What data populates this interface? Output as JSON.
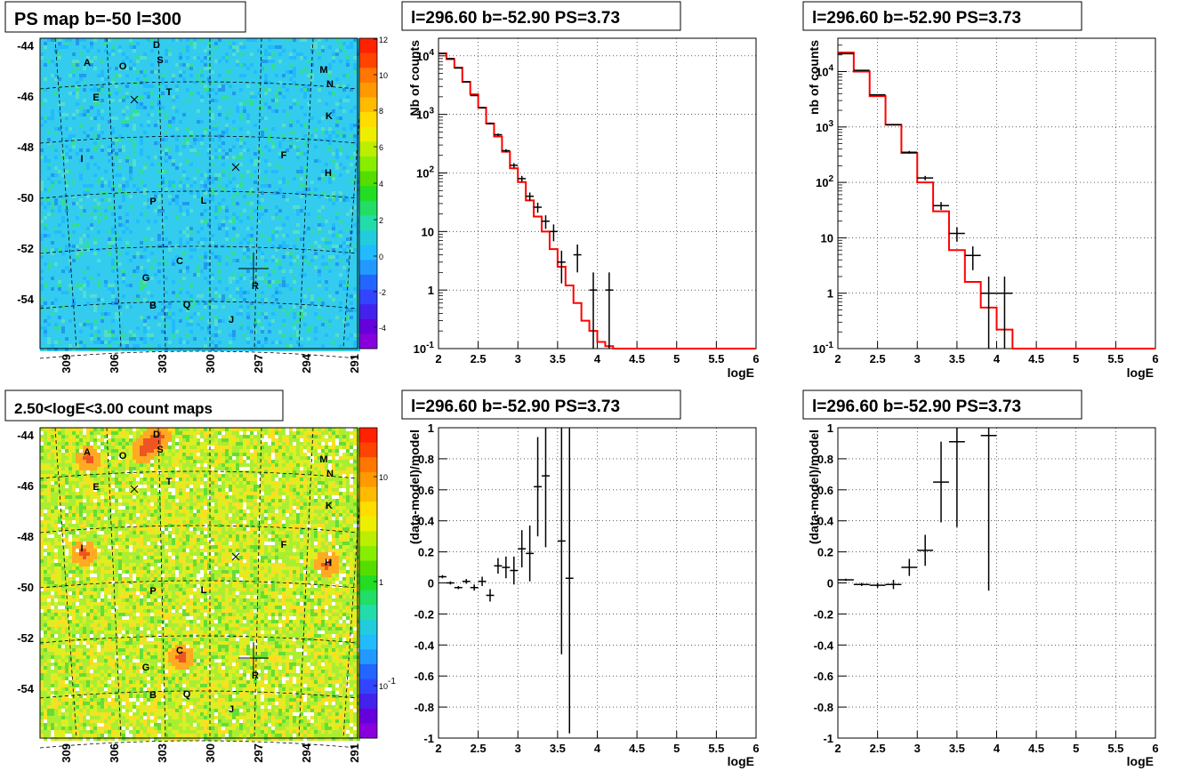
{
  "palette": {
    "data": "#000000",
    "model": "#ff0000",
    "grid": "#000000"
  },
  "chart_data": [
    {
      "type": "heatmap",
      "title": "PS map b=-50 l=300",
      "xticks": [
        "309",
        "306",
        "303",
        "300",
        "297",
        "294",
        "291"
      ],
      "yticks": [
        "-44",
        "-46",
        "-48",
        "-50",
        "-52",
        "-54"
      ],
      "colorbar_ticks": [
        "12",
        "10",
        "8",
        "6",
        "4",
        "2",
        "0",
        "-2",
        "-4"
      ],
      "sources": [
        "A",
        "O",
        "D",
        "S",
        "E",
        "T",
        "M",
        "N",
        "K",
        "I",
        "F",
        "H",
        "P",
        "L",
        "C",
        "G",
        "R",
        "B",
        "Q",
        "J"
      ],
      "grid": true
    },
    {
      "type": "line",
      "title": "l=296.60 b=-52.90 PS=3.73",
      "xlabel": "logE",
      "ylabel": "Nb of counts",
      "yscale": "log",
      "xlim": [
        2,
        6
      ],
      "ylim": [
        0.1,
        20000
      ],
      "xticks": [
        "2",
        "2.5",
        "3",
        "3.5",
        "4",
        "4.5",
        "5",
        "5.5",
        "6"
      ],
      "yticks": [
        "10^4",
        "10^3",
        "10^2",
        "10",
        "1",
        "10^-1"
      ],
      "grid": true,
      "data_points": {
        "x": [
          2.05,
          2.15,
          2.25,
          2.35,
          2.45,
          2.55,
          2.65,
          2.75,
          2.85,
          2.95,
          3.05,
          3.15,
          3.25,
          3.35,
          3.45,
          3.55,
          3.65,
          3.75,
          3.85,
          3.95,
          4.05,
          4.15
        ],
        "y": [
          11000,
          9000,
          6200,
          3600,
          2100,
          1300,
          700,
          450,
          240,
          135,
          80,
          40,
          26,
          15,
          10,
          3,
          0.1,
          4,
          0.1,
          1,
          0.1,
          1
        ],
        "err": [
          105,
          95,
          79,
          60,
          46,
          36,
          26,
          21,
          15,
          12,
          9,
          6.3,
          5.1,
          3.9,
          3.2,
          1.7,
          0,
          2,
          0,
          1,
          0,
          1
        ]
      },
      "model_step": {
        "edges": [
          2.0,
          2.1,
          2.2,
          2.3,
          2.4,
          2.5,
          2.6,
          2.7,
          2.8,
          2.9,
          3.0,
          3.1,
          3.2,
          3.3,
          3.4,
          3.5,
          3.6,
          3.7,
          3.8,
          3.9,
          4.0,
          4.1,
          4.2,
          6.0
        ],
        "values": [
          11000,
          8800,
          6300,
          3600,
          2200,
          1300,
          700,
          420,
          230,
          120,
          70,
          34,
          18,
          10,
          5,
          2.5,
          1.2,
          0.6,
          0.3,
          0.2,
          0.13,
          0.11,
          0.1
        ]
      }
    },
    {
      "type": "line",
      "title": "l=296.60 b=-52.90 PS=3.73",
      "xlabel": "logE",
      "ylabel": "nb of counts",
      "yscale": "log",
      "xlim": [
        2,
        6
      ],
      "ylim": [
        0.1,
        40000
      ],
      "xticks": [
        "2",
        "2.5",
        "3",
        "3.5",
        "4",
        "4.5",
        "5",
        "5.5",
        "6"
      ],
      "yticks": [
        "10^4",
        "10^3",
        "10^2",
        "10",
        "1",
        "10^-1"
      ],
      "grid": true,
      "data_points": {
        "x": [
          2.1,
          2.3,
          2.5,
          2.7,
          2.9,
          3.1,
          3.3,
          3.5,
          3.7,
          3.9,
          4.1
        ],
        "y": [
          21000,
          10500,
          3800,
          1100,
          350,
          120,
          38,
          12,
          4.8,
          1,
          1
        ],
        "err": [
          145,
          102,
          62,
          33,
          19,
          11,
          6.2,
          3.5,
          2.2,
          1,
          1
        ]
      },
      "model_step": {
        "edges": [
          2.0,
          2.2,
          2.4,
          2.6,
          2.8,
          3.0,
          3.2,
          3.4,
          3.6,
          3.8,
          4.0,
          4.2,
          6.0
        ],
        "values": [
          22000,
          10000,
          3600,
          1100,
          340,
          100,
          30,
          6,
          1.6,
          0.55,
          0.22,
          0.1
        ]
      }
    },
    {
      "type": "heatmap",
      "title": "2.50<logE<3.00 count maps",
      "xticks": [
        "309",
        "306",
        "303",
        "300",
        "297",
        "294",
        "291"
      ],
      "yticks": [
        "-44",
        "-46",
        "-48",
        "-50",
        "-52",
        "-54"
      ],
      "colorbar_ticks": [
        "10",
        "1",
        "10^-1"
      ],
      "sources": [
        "A",
        "O",
        "D",
        "S",
        "E",
        "T",
        "M",
        "N",
        "K",
        "I",
        "F",
        "H",
        "P",
        "L",
        "C",
        "G",
        "R",
        "B",
        "Q",
        "J"
      ],
      "grid": true
    },
    {
      "type": "scatter",
      "title": "l=296.60 b=-52.90 PS=3.73",
      "xlabel": "logE",
      "ylabel": "(data-model)/model",
      "xlim": [
        2,
        6
      ],
      "ylim": [
        -1,
        1
      ],
      "xticks": [
        "2",
        "2.5",
        "3",
        "3.5",
        "4",
        "4.5",
        "5",
        "5.5",
        "6"
      ],
      "yticks": [
        "1",
        "0.8",
        "0.6",
        "0.4",
        "0.2",
        "0",
        "-0.2",
        "-0.4",
        "-0.6",
        "-0.8",
        "-1"
      ],
      "grid": true,
      "points": {
        "x": [
          2.05,
          2.15,
          2.25,
          2.35,
          2.45,
          2.55,
          2.65,
          2.75,
          2.85,
          2.95,
          3.05,
          3.15,
          3.25,
          3.35,
          3.55,
          3.65
        ],
        "y": [
          0.04,
          0.0,
          -0.03,
          0.01,
          -0.03,
          0.01,
          -0.08,
          0.11,
          0.1,
          0.08,
          0.22,
          0.19,
          0.62,
          0.69,
          0.27,
          0.03
        ],
        "err": [
          0.01,
          0.01,
          0.01,
          0.015,
          0.02,
          0.03,
          0.04,
          0.05,
          0.07,
          0.09,
          0.12,
          0.18,
          0.32,
          0.46,
          0.73,
          1.0
        ]
      }
    },
    {
      "type": "scatter",
      "title": "l=296.60 b=-52.90 PS=3.73",
      "xlabel": "logE",
      "ylabel": "(data-model)/model",
      "xlim": [
        2,
        6
      ],
      "ylim": [
        -1,
        1
      ],
      "xticks": [
        "2",
        "2.5",
        "3",
        "3.5",
        "4",
        "4.5",
        "5",
        "5.5",
        "6"
      ],
      "yticks": [
        "1",
        "0.8",
        "0.6",
        "0.4",
        "0.2",
        "0",
        "-0.2",
        "-0.4",
        "-0.6",
        "-0.8",
        "-1"
      ],
      "grid": true,
      "points": {
        "x": [
          2.1,
          2.3,
          2.5,
          2.7,
          2.9,
          3.1,
          3.3,
          3.5,
          3.9
        ],
        "y": [
          0.02,
          -0.01,
          -0.015,
          -0.01,
          0.1,
          0.21,
          0.65,
          0.91,
          0.95
        ],
        "err": [
          0.007,
          0.01,
          0.016,
          0.03,
          0.055,
          0.1,
          0.26,
          0.55,
          1.0
        ]
      }
    }
  ]
}
